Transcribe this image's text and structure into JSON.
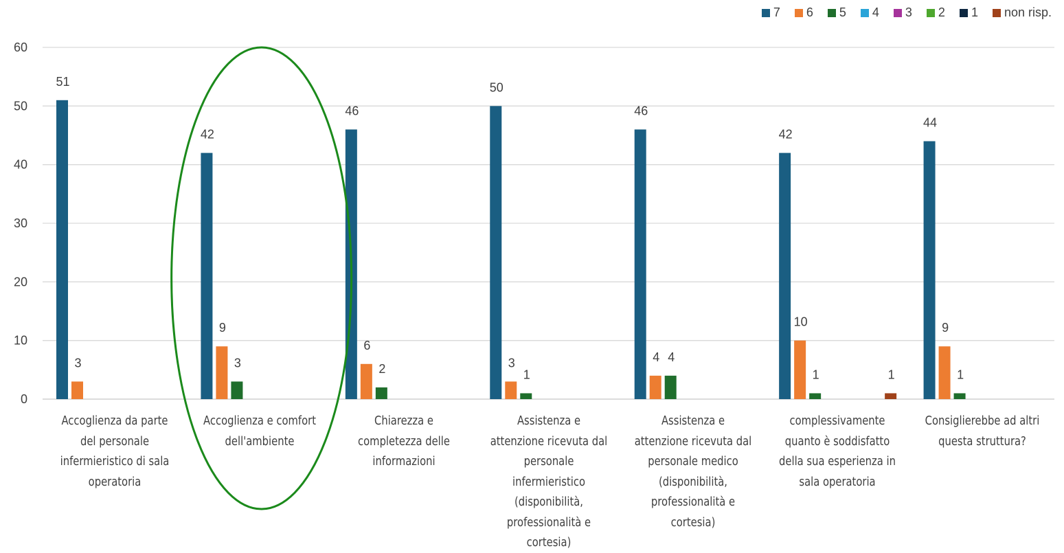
{
  "chart_data": {
    "type": "bar",
    "categories": [
      "Accoglienza da parte del personale infermieristico di sala operatoria",
      "Accoglienza e comfort dell'ambiente",
      "Chiarezza e completezza delle informazioni",
      "Assistenza e attenzione ricevuta dal personale infermieristico (disponibilità, professionalità e cortesia)",
      "Assistenza e attenzione ricevuta dal personale medico (disponibilità, professionalità e cortesia)",
      "complessivamente quanto è soddisfatto della sua esperienza in sala operatoria",
      "Consiglierebbe ad altri questa struttura?"
    ],
    "series": [
      {
        "name": "7",
        "color": "#1a5e82",
        "values": [
          51,
          42,
          46,
          50,
          46,
          42,
          44
        ]
      },
      {
        "name": "6",
        "color": "#ed7d31",
        "values": [
          3,
          9,
          6,
          3,
          4,
          10,
          9
        ]
      },
      {
        "name": "5",
        "color": "#1f6e2c",
        "values": [
          null,
          3,
          2,
          1,
          4,
          1,
          1
        ]
      },
      {
        "name": "4",
        "color": "#2aa4d8",
        "values": [
          null,
          null,
          null,
          null,
          null,
          null,
          null
        ]
      },
      {
        "name": "3",
        "color": "#a5339b",
        "values": [
          null,
          null,
          null,
          null,
          null,
          null,
          null
        ]
      },
      {
        "name": "2",
        "color": "#4ea72e",
        "values": [
          null,
          null,
          null,
          null,
          null,
          null,
          null
        ]
      },
      {
        "name": "1",
        "color": "#0e2841",
        "values": [
          null,
          null,
          null,
          null,
          null,
          null,
          null
        ]
      },
      {
        "name": "non risp.",
        "color": "#a0421a",
        "values": [
          null,
          null,
          null,
          null,
          null,
          1,
          null
        ]
      }
    ],
    "ylim": [
      0,
      60
    ],
    "yticks": [
      0,
      10,
      20,
      30,
      40,
      50,
      60
    ],
    "grid": true,
    "legend_position": "top-right",
    "highlight": {
      "category_index": 1,
      "shape": "ellipse",
      "color": "#1b8a1b"
    }
  }
}
